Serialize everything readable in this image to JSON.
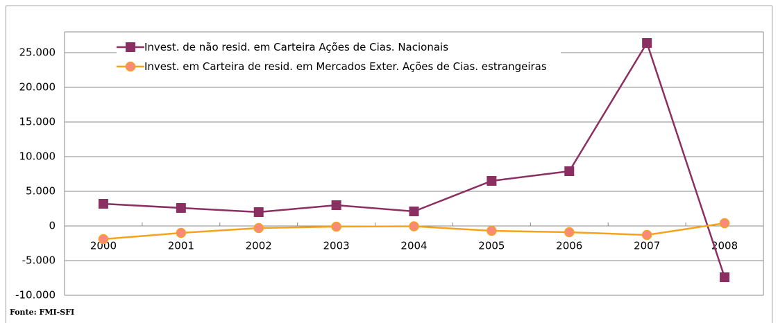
{
  "chart_data": {
    "type": "line",
    "categories": [
      "2000",
      "2001",
      "2002",
      "2003",
      "2004",
      "2005",
      "2006",
      "2007",
      "2008"
    ],
    "series": [
      {
        "name": "Invest. de não resid. em Carteira   Ações de Cias. Nacionais",
        "color": "#8b2f62",
        "marker": "square",
        "values": [
          3200,
          2600,
          2000,
          3000,
          2100,
          6500,
          7900,
          26400,
          -7400
        ]
      },
      {
        "name": "Invest. em Carteira de resid. em Mercados Exter.  Ações de Cias. estrangeiras",
        "color": "#f7a21b",
        "marker": "circle",
        "values": [
          -1900,
          -1000,
          -300,
          -100,
          -50,
          -700,
          -900,
          -1300,
          400
        ]
      }
    ],
    "ylim": [
      -10000,
      28000
    ],
    "yticks": [
      {
        "value": -10000,
        "label": "-10.000"
      },
      {
        "value": -5000,
        "label": "-5.000"
      },
      0,
      {
        "value": 5000,
        "label": "5.000"
      },
      {
        "value": 10000,
        "label": "10.000"
      },
      {
        "value": 15000,
        "label": "15.000"
      },
      {
        "value": 20000,
        "label": "20.000"
      },
      {
        "value": 25000,
        "label": "25.000"
      }
    ],
    "grid": true,
    "legend": "top-left",
    "source": "Fonte: FMI-SFI"
  }
}
